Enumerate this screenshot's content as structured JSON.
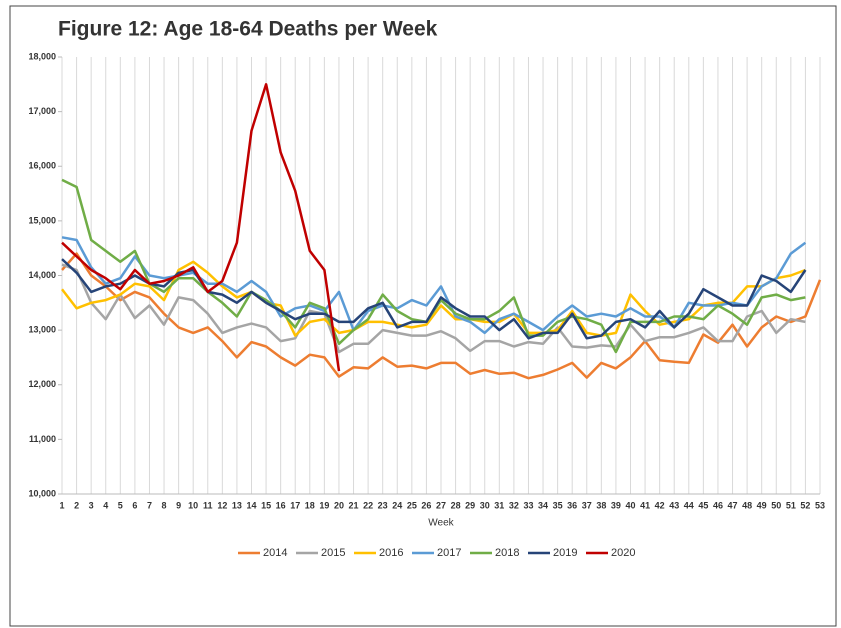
{
  "chart_data": {
    "type": "line",
    "title": "Figure 12: Age 18-64 Deaths per Week",
    "x_label": "Week",
    "categories": [
      "1",
      "2",
      "3",
      "4",
      "5",
      "6",
      "7",
      "8",
      "9",
      "10",
      "11",
      "12",
      "13",
      "14",
      "15",
      "16",
      "17",
      "18",
      "19",
      "20",
      "21",
      "22",
      "23",
      "24",
      "25",
      "26",
      "27",
      "28",
      "29",
      "30",
      "31",
      "32",
      "33",
      "34",
      "35",
      "36",
      "37",
      "38",
      "39",
      "40",
      "41",
      "42",
      "43",
      "44",
      "45",
      "46",
      "47",
      "48",
      "49",
      "50",
      "51",
      "52",
      "53"
    ],
    "ylim": [
      10000,
      18000
    ],
    "yticks": [
      {
        "value": 10000,
        "label": "10,000"
      },
      {
        "value": 11000,
        "label": "11,000"
      },
      {
        "value": 12000,
        "label": "12,000"
      },
      {
        "value": 13000,
        "label": "13,000"
      },
      {
        "value": 14000,
        "label": "14,000"
      },
      {
        "value": 15000,
        "label": "15,000"
      },
      {
        "value": 16000,
        "label": "16,000"
      },
      {
        "value": 17000,
        "label": "17,000"
      },
      {
        "value": 18000,
        "label": "18,000"
      }
    ],
    "grid": true,
    "legend": "bottom",
    "series": [
      {
        "name": "2014",
        "color": "#ed7d31",
        "values": [
          14100,
          14400,
          14000,
          13800,
          13550,
          13700,
          13600,
          13300,
          13050,
          12950,
          13050,
          12800,
          12500,
          12780,
          12700,
          12500,
          12350,
          12550,
          12500,
          12150,
          12320,
          12300,
          12500,
          12330,
          12350,
          12300,
          12400,
          12400,
          12200,
          12270,
          12200,
          12220,
          12120,
          12180,
          12280,
          12400,
          12130,
          12400,
          12300,
          12500,
          12800,
          12450,
          12420,
          12400,
          12920,
          12770,
          13100,
          12700,
          13050,
          13250,
          13150,
          13250,
          13920
        ]
      },
      {
        "name": "2015",
        "color": "#a5a5a5",
        "values": [
          14200,
          14100,
          13500,
          13200,
          13650,
          13220,
          13450,
          13100,
          13600,
          13550,
          13300,
          12950,
          13050,
          13120,
          13050,
          12800,
          12850,
          13350,
          13300,
          12600,
          12750,
          12750,
          13000,
          12950,
          12900,
          12900,
          12980,
          12850,
          12620,
          12800,
          12800,
          12700,
          12780,
          12750,
          13050,
          12700,
          12680,
          12720,
          12700,
          13100,
          12800,
          12870,
          12870,
          12950,
          13050,
          12800,
          12800,
          13250,
          13350,
          12950,
          13200,
          13150,
          null
        ]
      },
      {
        "name": "2016",
        "color": "#ffc000",
        "values": [
          13750,
          13400,
          13500,
          13550,
          13650,
          13850,
          13800,
          13550,
          14100,
          14250,
          14050,
          13800,
          13600,
          13700,
          13500,
          13450,
          12900,
          13150,
          13200,
          12950,
          13000,
          13150,
          13150,
          13100,
          13050,
          13100,
          13450,
          13200,
          13200,
          13150,
          13150,
          13300,
          12950,
          12950,
          13000,
          13350,
          12950,
          12900,
          12950,
          13650,
          13350,
          13100,
          13150,
          13200,
          13450,
          13500,
          13500,
          13800,
          13800,
          13950,
          14000,
          14100,
          null
        ]
      },
      {
        "name": "2017",
        "color": "#5b9bd5",
        "values": [
          14700,
          14650,
          14150,
          13850,
          13950,
          14350,
          14000,
          13950,
          14000,
          14050,
          13850,
          13850,
          13700,
          13900,
          13700,
          13250,
          13400,
          13450,
          13350,
          13700,
          13000,
          13350,
          13450,
          13400,
          13550,
          13450,
          13800,
          13250,
          13150,
          12950,
          13200,
          13300,
          13150,
          13000,
          13250,
          13450,
          13250,
          13300,
          13250,
          13400,
          13250,
          13250,
          13050,
          13500,
          13450,
          13450,
          13500,
          13450,
          13800,
          13950,
          14400,
          14600,
          null
        ]
      },
      {
        "name": "2018",
        "color": "#70ad47",
        "values": [
          15750,
          15620,
          14650,
          14450,
          14250,
          14450,
          13850,
          13700,
          13950,
          13950,
          13700,
          13500,
          13250,
          13700,
          13550,
          13350,
          13050,
          13500,
          13400,
          12750,
          13000,
          13200,
          13650,
          13350,
          13200,
          13150,
          13550,
          13300,
          13200,
          13200,
          13350,
          13600,
          12900,
          12900,
          13150,
          13250,
          13200,
          13100,
          12600,
          13150,
          13150,
          13150,
          13250,
          13250,
          13200,
          13450,
          13300,
          13100,
          13600,
          13650,
          13550,
          13600,
          null
        ]
      },
      {
        "name": "2019",
        "color": "#264478",
        "values": [
          14300,
          14050,
          13700,
          13800,
          13850,
          14000,
          13850,
          13800,
          14050,
          14100,
          13700,
          13650,
          13500,
          13700,
          13500,
          13350,
          13200,
          13300,
          13300,
          13150,
          13150,
          13400,
          13500,
          13050,
          13150,
          13150,
          13600,
          13400,
          13250,
          13250,
          13000,
          13200,
          12850,
          12950,
          12950,
          13300,
          12850,
          12900,
          13150,
          13200,
          13050,
          13350,
          13050,
          13300,
          13750,
          13600,
          13450,
          13450,
          14000,
          13900,
          13700,
          14100,
          null
        ]
      },
      {
        "name": "2020",
        "color": "#c00000",
        "values": [
          14600,
          14350,
          14100,
          13950,
          13750,
          14100,
          13850,
          13900,
          14000,
          14150,
          13700,
          13900,
          14600,
          16650,
          17500,
          16250,
          15550,
          14450,
          14100,
          12250,
          null,
          null,
          null,
          null,
          null,
          null,
          null,
          null,
          null,
          null,
          null,
          null,
          null,
          null,
          null,
          null,
          null,
          null,
          null,
          null,
          null,
          null,
          null,
          null,
          null,
          null,
          null,
          null,
          null,
          null,
          null,
          null,
          null
        ]
      }
    ]
  }
}
